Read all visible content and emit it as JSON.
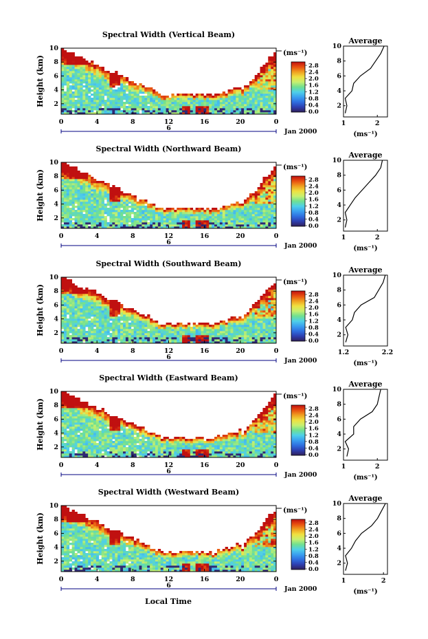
{
  "figure": {
    "xlabel": "Local Time",
    "x_ticks": [
      "0",
      "4",
      "8",
      "12",
      "16",
      "20",
      "0"
    ],
    "date_label": "Jan 2000",
    "day_marker": "6",
    "ylabel": "Height (km)",
    "y_ticks": [
      "2",
      "4",
      "6",
      "8",
      "10"
    ],
    "unit_label": "(ms⁻¹)",
    "colorbar_ticks": [
      "0.0",
      "0.4",
      "0.8",
      "1.2",
      "1.6",
      "2.0",
      "2.4",
      "2.8"
    ],
    "profile_title": "Average",
    "profile_xlabel": "(ms⁻¹)",
    "colors": {
      "colormap": [
        "#30205a",
        "#2e3fb0",
        "#2f6fe0",
        "#3aa0f0",
        "#4fd0e8",
        "#70e090",
        "#c8f070",
        "#f0e040",
        "#f0a020",
        "#e85010",
        "#c01010"
      ],
      "line": "#000000",
      "axis_tick_blue": "#000080"
    }
  },
  "chart_data": [
    {
      "type": "heatmap",
      "title": "Spectral Width (Vertical Beam)",
      "xlabel": "Local Time",
      "ylabel": "Height (km)",
      "xlim": [
        0,
        24
      ],
      "ylim": [
        0.5,
        10
      ],
      "colorbar_range": [
        0.0,
        2.9
      ],
      "profile": {
        "title": "Average",
        "xlabel": "(ms⁻¹)",
        "xticks": [
          "1",
          "2"
        ],
        "xlim": [
          1.0,
          2.3
        ],
        "heights": [
          1,
          2,
          3,
          4,
          5,
          6,
          7,
          8,
          9,
          10
        ],
        "values": [
          1.05,
          1.1,
          1.05,
          1.25,
          1.3,
          1.5,
          1.8,
          1.95,
          2.1,
          2.2
        ]
      }
    },
    {
      "type": "heatmap",
      "title": "Spectral Width (Northward Beam)",
      "xlabel": "Local Time",
      "ylabel": "Height (km)",
      "xlim": [
        0,
        24
      ],
      "ylim": [
        0.5,
        10
      ],
      "colorbar_range": [
        0.0,
        2.9
      ],
      "profile": {
        "title": "Average",
        "xlabel": "(ms⁻¹)",
        "xticks": [
          "1",
          "2"
        ],
        "xlim": [
          1.0,
          2.3
        ],
        "heights": [
          1,
          2,
          3,
          4,
          5,
          6,
          7,
          8,
          9,
          10
        ],
        "values": [
          1.05,
          1.1,
          1.05,
          1.2,
          1.35,
          1.55,
          1.75,
          1.95,
          2.1,
          2.15
        ]
      }
    },
    {
      "type": "heatmap",
      "title": "Spectral Width (Southward Beam)",
      "xlabel": "Local Time",
      "ylabel": "Height (km)",
      "xlim": [
        0,
        24
      ],
      "ylim": [
        0.5,
        10
      ],
      "colorbar_range": [
        0.0,
        2.9
      ],
      "profile": {
        "title": "Average",
        "xlabel": "(ms⁻¹)",
        "xticks": [
          "1.2",
          "2.2"
        ],
        "xlim": [
          1.2,
          2.2
        ],
        "heights": [
          1,
          2,
          3,
          4,
          5,
          6,
          7,
          8,
          9,
          10
        ],
        "values": [
          1.25,
          1.3,
          1.25,
          1.4,
          1.45,
          1.6,
          1.9,
          2.0,
          2.1,
          2.15
        ]
      }
    },
    {
      "type": "heatmap",
      "title": "Spectral Width (Eastward Beam)",
      "xlabel": "Local Time",
      "ylabel": "Height (km)",
      "xlim": [
        0,
        24
      ],
      "ylim": [
        0.5,
        10
      ],
      "colorbar_range": [
        0.0,
        2.9
      ],
      "profile": {
        "title": "Average",
        "xlabel": "(ms⁻¹)",
        "xticks": [
          "1",
          "2"
        ],
        "xlim": [
          1.0,
          2.3
        ],
        "heights": [
          1,
          2,
          3,
          4,
          5,
          6,
          7,
          8,
          9,
          10
        ],
        "values": [
          1.1,
          1.15,
          1.05,
          1.3,
          1.3,
          1.5,
          1.85,
          2.0,
          2.05,
          2.1
        ]
      }
    },
    {
      "type": "heatmap",
      "title": "Spectral Width (Westward Beam)",
      "xlabel": "Local Time",
      "ylabel": "Height (km)",
      "xlim": [
        0,
        24
      ],
      "ylim": [
        0.5,
        10
      ],
      "colorbar_range": [
        0.0,
        2.9
      ],
      "profile": {
        "title": "Average",
        "xlabel": "(ms⁻¹)",
        "xticks": [
          "1",
          "2"
        ],
        "xlim": [
          1.0,
          2.1
        ],
        "heights": [
          1,
          2,
          3,
          4,
          5,
          6,
          7,
          8,
          9,
          10
        ],
        "values": [
          1.05,
          1.1,
          1.05,
          1.2,
          1.3,
          1.45,
          1.7,
          1.85,
          1.95,
          2.05
        ]
      }
    }
  ]
}
